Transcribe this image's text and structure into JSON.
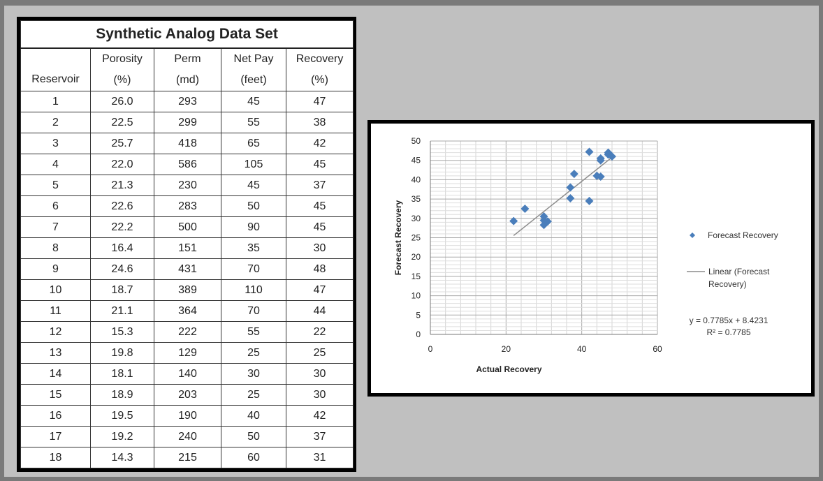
{
  "table": {
    "title": "Synthetic Analog Data Set",
    "headers": [
      {
        "top": "",
        "bottom": "Reservoir"
      },
      {
        "top": "Porosity",
        "bottom": "(%)"
      },
      {
        "top": "Perm",
        "bottom": "(md)"
      },
      {
        "top": "Net Pay",
        "bottom": "(feet)"
      },
      {
        "top": "Recovery",
        "bottom": "(%)"
      }
    ],
    "rows": [
      [
        "1",
        "26.0",
        "293",
        "45",
        "47"
      ],
      [
        "2",
        "22.5",
        "299",
        "55",
        "38"
      ],
      [
        "3",
        "25.7",
        "418",
        "65",
        "42"
      ],
      [
        "4",
        "22.0",
        "586",
        "105",
        "45"
      ],
      [
        "5",
        "21.3",
        "230",
        "45",
        "37"
      ],
      [
        "6",
        "22.6",
        "283",
        "50",
        "45"
      ],
      [
        "7",
        "22.2",
        "500",
        "90",
        "45"
      ],
      [
        "8",
        "16.4",
        "151",
        "35",
        "30"
      ],
      [
        "9",
        "24.6",
        "431",
        "70",
        "48"
      ],
      [
        "10",
        "18.7",
        "389",
        "110",
        "47"
      ],
      [
        "11",
        "21.1",
        "364",
        "70",
        "44"
      ],
      [
        "12",
        "15.3",
        "222",
        "55",
        "22"
      ],
      [
        "13",
        "19.8",
        "129",
        "25",
        "25"
      ],
      [
        "14",
        "18.1",
        "140",
        "30",
        "30"
      ],
      [
        "15",
        "18.9",
        "203",
        "25",
        "30"
      ],
      [
        "16",
        "19.5",
        "190",
        "40",
        "42"
      ],
      [
        "17",
        "19.2",
        "240",
        "50",
        "37"
      ],
      [
        "18",
        "14.3",
        "215",
        "60",
        "31"
      ]
    ]
  },
  "chart_data": {
    "type": "scatter",
    "title": "",
    "xlabel": "Actual Recovery",
    "ylabel": "Forecast Recovery",
    "xlim": [
      0,
      60
    ],
    "ylim": [
      0,
      50
    ],
    "x_ticks": [
      "0",
      "20",
      "40",
      "60"
    ],
    "y_ticks": [
      "0",
      "5",
      "10",
      "15",
      "20",
      "25",
      "30",
      "35",
      "40",
      "45",
      "50"
    ],
    "grid": true,
    "legend_position": "right",
    "series": [
      {
        "name": "Forecast Recovery",
        "color": "#4a7ebb",
        "marker": "diamond",
        "points": [
          {
            "x": 47,
            "y": 47
          },
          {
            "x": 38,
            "y": 41.5
          },
          {
            "x": 42,
            "y": 34.5
          },
          {
            "x": 45,
            "y": 45.5
          },
          {
            "x": 37,
            "y": 38
          },
          {
            "x": 45,
            "y": 40.8
          },
          {
            "x": 45,
            "y": 45
          },
          {
            "x": 30,
            "y": 30.5
          },
          {
            "x": 48,
            "y": 46
          },
          {
            "x": 47,
            "y": 46.5
          },
          {
            "x": 44,
            "y": 41
          },
          {
            "x": 22,
            "y": 29.3
          },
          {
            "x": 25,
            "y": 32.5
          },
          {
            "x": 30,
            "y": 28.3
          },
          {
            "x": 30,
            "y": 29.5
          },
          {
            "x": 42,
            "y": 47.2
          },
          {
            "x": 37,
            "y": 35.2
          },
          {
            "x": 31,
            "y": 29.2
          }
        ]
      }
    ],
    "trendline": {
      "name": "Linear (Forecast Recovery)",
      "color": "#8c8c8c",
      "slope": 0.7785,
      "intercept": 8.4231,
      "x_range": [
        22,
        48
      ]
    },
    "legend": {
      "series_label": "Forecast Recovery",
      "trend_label_line1": "Linear (Forecast",
      "trend_label_line2": "Recovery)"
    },
    "equation": "y = 0.7785x + 8.4231",
    "r_squared": "R² = 0.7785"
  }
}
